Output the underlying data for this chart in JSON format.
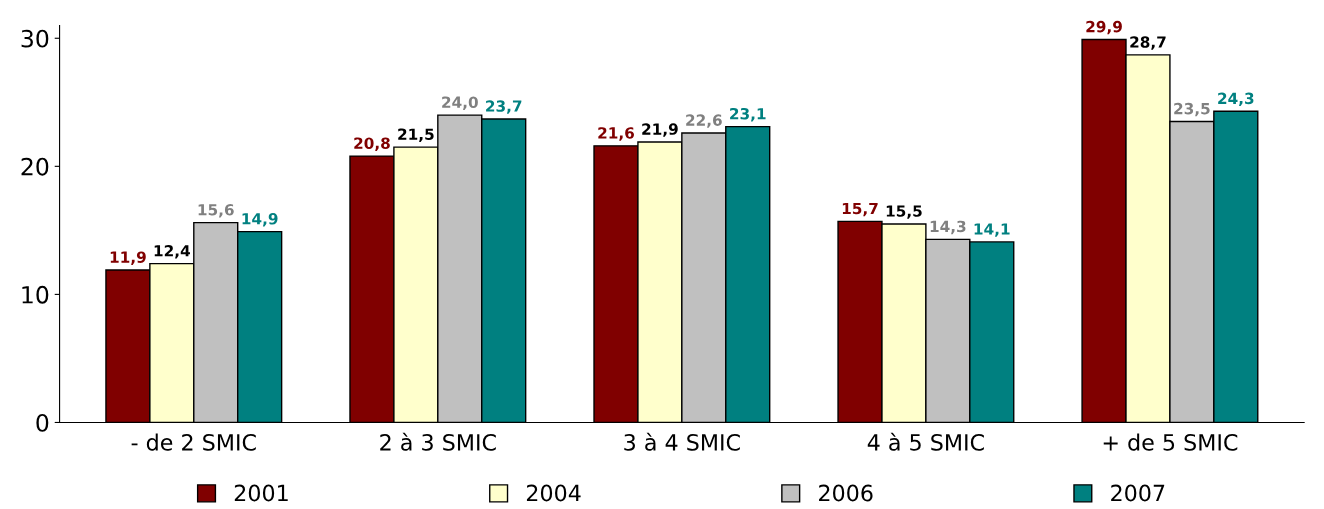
{
  "chart_data": {
    "type": "bar",
    "categories": [
      "- de 2 SMIC",
      "2 à 3 SMIC",
      "3 à 4 SMIC",
      "4 à 5 SMIC",
      "+ de 5 SMIC"
    ],
    "series": [
      {
        "name": "2001",
        "color": "#800000",
        "values": [
          11.9,
          20.8,
          21.6,
          15.7,
          29.9
        ],
        "value_labels": [
          "11,9",
          "20,8",
          "21,6",
          "15,7",
          "29,9"
        ]
      },
      {
        "name": "2004",
        "color": "#ffffcc",
        "values": [
          12.4,
          21.5,
          21.9,
          15.5,
          28.7
        ],
        "value_labels": [
          "12,4",
          "21,5",
          "21,9",
          "15,5",
          "28,7"
        ]
      },
      {
        "name": "2006",
        "color": "#c0c0c0",
        "values": [
          15.6,
          24.0,
          22.6,
          14.3,
          23.5
        ],
        "value_labels": [
          "15,6",
          "24,0",
          "22,6",
          "14,3",
          "23,5"
        ]
      },
      {
        "name": "2007",
        "color": "#008080",
        "values": [
          14.9,
          23.7,
          23.1,
          14.1,
          24.3
        ],
        "value_labels": [
          "14,9",
          "23,7",
          "23,1",
          "14,1",
          "24,3"
        ]
      }
    ],
    "ylim": [
      0,
      31
    ],
    "yticks": [
      0,
      10,
      20,
      30
    ],
    "grid": false,
    "legend": "bottom"
  }
}
